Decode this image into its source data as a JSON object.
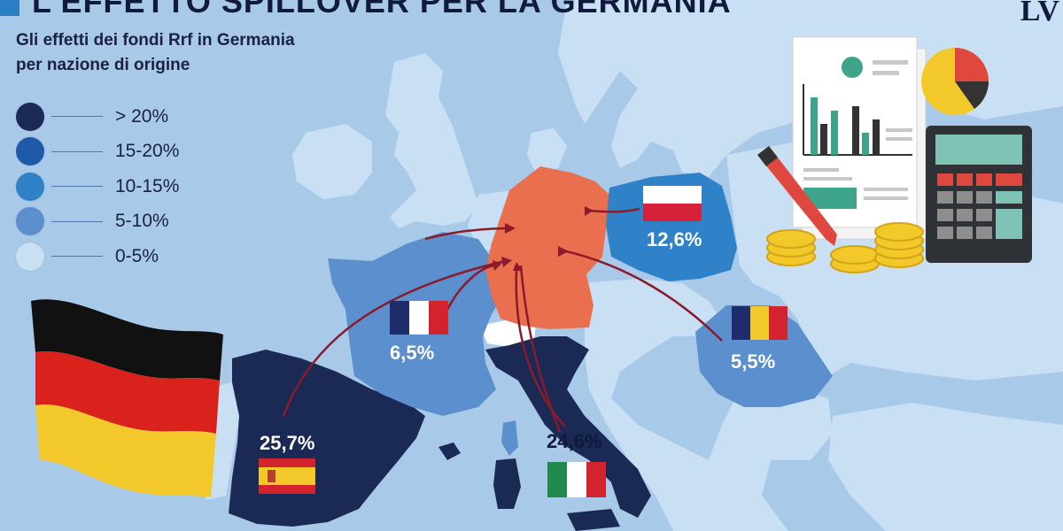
{
  "header": {
    "title": "L'EFFETTO SPILLOVER PER LA GERMANIA",
    "subtitle_line1": "Gli effetti dei fondi Rrf in Germania",
    "subtitle_line2": "per nazione di origine"
  },
  "logo": "LV",
  "legend": [
    {
      "label": "> 20%",
      "color": "#1b2a55"
    },
    {
      "label": "15-20%",
      "color": "#1f5aa8"
    },
    {
      "label": "10-15%",
      "color": "#2f81c8"
    },
    {
      "label": "5-10%",
      "color": "#5b8fcd"
    },
    {
      "label": "0-5%",
      "color": "#c9dff3"
    }
  ],
  "colors": {
    "sea": "#a9c9e9",
    "germany": "#e96f4f",
    "arrows": "#8a1a2c",
    "other_land": "#c9dff3"
  },
  "countries": {
    "spain": {
      "value": "25,7%",
      "flag": "spain-flag"
    },
    "italy": {
      "value": "24,6%",
      "flag": "italy-flag"
    },
    "poland": {
      "value": "12,6%",
      "flag": "poland-flag"
    },
    "france": {
      "value": "6,5%",
      "flag": "france-flag"
    },
    "romania": {
      "value": "5,5%",
      "flag": "romania-flag"
    }
  },
  "icons": [
    "germany-flag-icon",
    "report-document-icon",
    "calculator-icon",
    "pen-icon",
    "coins-icon",
    "pie-chart-icon"
  ]
}
